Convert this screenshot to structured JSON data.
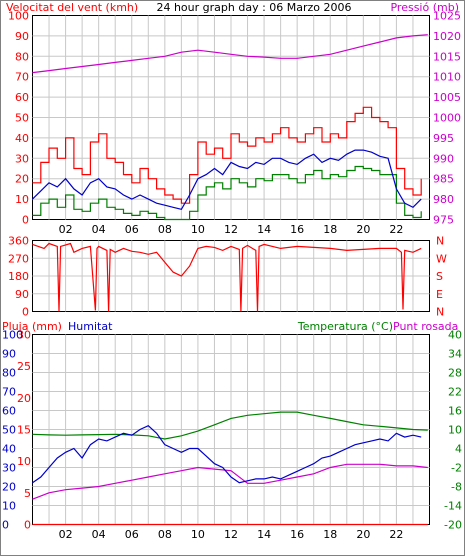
{
  "header": {
    "wind_label": "Velocitat del vent (kmh)",
    "title": "24 hour graph day : 06 Marzo 2006",
    "pressure_label": "Pressió (mb)"
  },
  "panel_bottom": {
    "rain_label": "Pluja (mm)",
    "humidity_label": "Humitat",
    "temp_label": "Temperatura (°C)",
    "dew_label": "Punt rosada"
  },
  "colors": {
    "wind_gust": "#ff0000",
    "wind_avg": "#0000cc",
    "wind_min": "#008000",
    "pressure": "#cc00cc",
    "direction": "#ff0000",
    "humidity": "#0000cc",
    "temperature": "#008000",
    "dew": "#cc00cc",
    "rain": "#ff0000",
    "grid": "#c8c8c8"
  },
  "chart_data": [
    {
      "type": "line",
      "title": "24 hour graph day : 06 Marzo 2006",
      "x_ticks": [
        "02",
        "04",
        "06",
        "08",
        "10",
        "12",
        "14",
        "16",
        "18",
        "20",
        "22"
      ],
      "xlim": [
        0,
        24
      ],
      "y_left_ticks": [
        "0",
        "10",
        "20",
        "30",
        "40",
        "50",
        "60",
        "70",
        "80",
        "90",
        "100"
      ],
      "y_left_label": "Velocitat del vent (kmh)",
      "y_left_range": [
        0,
        100
      ],
      "y_right_ticks": [
        "975",
        "980",
        "985",
        "990",
        "995",
        "1000",
        "1005",
        "1010",
        "1015",
        "1020",
        "1025"
      ],
      "y_right_label": "Pressió (mb)",
      "y_right_range": [
        975,
        1025
      ],
      "grid": true,
      "series": [
        {
          "key": "gust",
          "axis": "left",
          "x": [
            0,
            0.5,
            1,
            1.5,
            2,
            2.5,
            3,
            3.5,
            4,
            4.5,
            5,
            5.5,
            6,
            6.5,
            7,
            7.5,
            8,
            8.5,
            9,
            9.5,
            10,
            10.5,
            11,
            11.5,
            12,
            12.5,
            13,
            13.5,
            14,
            14.5,
            15,
            15.5,
            16,
            16.5,
            17,
            17.5,
            18,
            18.5,
            19,
            19.5,
            20,
            20.5,
            21,
            21.5,
            22,
            22.5,
            23,
            23.5
          ],
          "values": [
            18,
            28,
            35,
            30,
            40,
            25,
            22,
            38,
            42,
            30,
            28,
            22,
            18,
            25,
            20,
            15,
            12,
            10,
            8,
            22,
            38,
            32,
            35,
            30,
            42,
            38,
            36,
            40,
            38,
            42,
            45,
            40,
            38,
            42,
            45,
            38,
            42,
            40,
            48,
            52,
            55,
            50,
            48,
            45,
            25,
            15,
            12,
            20
          ]
        },
        {
          "key": "average",
          "axis": "left",
          "x": [
            0,
            0.5,
            1,
            1.5,
            2,
            2.5,
            3,
            3.5,
            4,
            4.5,
            5,
            5.5,
            6,
            6.5,
            7,
            7.5,
            8,
            8.5,
            9,
            9.5,
            10,
            10.5,
            11,
            11.5,
            12,
            12.5,
            13,
            13.5,
            14,
            14.5,
            15,
            15.5,
            16,
            16.5,
            17,
            17.5,
            18,
            18.5,
            19,
            19.5,
            20,
            20.5,
            21,
            21.5,
            22,
            22.5,
            23,
            23.5
          ],
          "values": [
            10,
            14,
            18,
            16,
            20,
            15,
            12,
            18,
            20,
            16,
            15,
            12,
            10,
            12,
            10,
            8,
            7,
            6,
            5,
            12,
            20,
            22,
            25,
            22,
            28,
            26,
            25,
            28,
            27,
            30,
            30,
            28,
            27,
            30,
            32,
            28,
            30,
            29,
            32,
            34,
            34,
            33,
            31,
            30,
            15,
            8,
            6,
            10
          ]
        },
        {
          "key": "minimum",
          "axis": "left",
          "x": [
            0,
            0.5,
            1,
            1.5,
            2,
            2.5,
            3,
            3.5,
            4,
            4.5,
            5,
            5.5,
            6,
            6.5,
            7,
            7.5,
            8,
            8.5,
            9,
            9.5,
            10,
            10.5,
            11,
            11.5,
            12,
            12.5,
            13,
            13.5,
            14,
            14.5,
            15,
            15.5,
            16,
            16.5,
            17,
            17.5,
            18,
            18.5,
            19,
            19.5,
            20,
            20.5,
            21,
            21.5,
            22,
            22.5,
            23,
            23.5
          ],
          "values": [
            2,
            8,
            10,
            6,
            12,
            5,
            4,
            8,
            10,
            6,
            5,
            3,
            2,
            4,
            3,
            1,
            0,
            0,
            0,
            4,
            12,
            16,
            18,
            15,
            20,
            18,
            16,
            20,
            19,
            22,
            22,
            20,
            18,
            22,
            24,
            20,
            22,
            21,
            24,
            26,
            25,
            24,
            22,
            22,
            8,
            2,
            1,
            4
          ]
        },
        {
          "key": "pressure",
          "axis": "right",
          "x": [
            0,
            1,
            2,
            3,
            4,
            5,
            6,
            7,
            8,
            9,
            10,
            11,
            12,
            13,
            14,
            15,
            16,
            17,
            18,
            19,
            20,
            21,
            22,
            23,
            23.9
          ],
          "values": [
            1011,
            1011.5,
            1012,
            1012.5,
            1013,
            1013.5,
            1014,
            1014.5,
            1015,
            1016,
            1016.5,
            1016,
            1015.5,
            1015,
            1014.8,
            1014.5,
            1014.5,
            1015,
            1015.5,
            1016.5,
            1017.5,
            1018.5,
            1019.5,
            1020,
            1020.3
          ]
        }
      ]
    },
    {
      "type": "line",
      "x_ticks": [
        "02",
        "04",
        "06",
        "08",
        "10",
        "12",
        "14",
        "16",
        "18",
        "20",
        "22"
      ],
      "xlim": [
        0,
        24
      ],
      "y_left_ticks": [
        "0",
        "90",
        "180",
        "270",
        "360"
      ],
      "y_left_range": [
        0,
        360
      ],
      "y_right_ticks": [
        "N",
        "W",
        "S",
        "E",
        "N"
      ],
      "grid": true,
      "series": [
        {
          "key": "direction",
          "x": [
            0,
            0.7,
            1,
            1.5,
            1.6,
            1.7,
            2.3,
            2.5,
            3,
            3.5,
            3.8,
            3.9,
            4,
            4.5,
            4.6,
            4.7,
            5,
            5.5,
            6,
            6.5,
            7,
            7.5,
            8,
            8.5,
            9,
            9.5,
            10,
            10.5,
            11,
            11.5,
            12,
            12.5,
            12.6,
            12.7,
            13,
            13.5,
            13.6,
            13.7,
            14,
            15,
            16,
            17,
            18,
            19,
            20,
            21,
            22,
            22.3,
            22.4,
            22.5,
            23,
            23.5
          ],
          "values": [
            340,
            320,
            345,
            330,
            0,
            330,
            345,
            300,
            320,
            330,
            5,
            320,
            330,
            310,
            0,
            315,
            300,
            320,
            305,
            300,
            290,
            300,
            250,
            200,
            180,
            230,
            320,
            330,
            325,
            310,
            330,
            315,
            0,
            320,
            335,
            310,
            0,
            330,
            340,
            320,
            330,
            325,
            320,
            310,
            315,
            320,
            320,
            300,
            10,
            310,
            300,
            320
          ]
        }
      ]
    },
    {
      "type": "line",
      "x_ticks": [
        "02",
        "04",
        "06",
        "08",
        "10",
        "12",
        "14",
        "16",
        "18",
        "20",
        "22"
      ],
      "xlim": [
        0,
        24
      ],
      "y_rain_ticks": [
        "0",
        "5",
        "10",
        "15",
        "20",
        "25",
        "30"
      ],
      "y_rain_range": [
        0,
        30
      ],
      "y_humidity_ticks": [
        "0",
        "10",
        "20",
        "30",
        "40",
        "50",
        "60",
        "70",
        "80",
        "90",
        "100"
      ],
      "y_humidity_range": [
        0,
        100
      ],
      "y_temp_ticks": [
        "-20",
        "-14",
        "-8",
        "-2",
        "4",
        "10",
        "16",
        "22",
        "28",
        "34",
        "40"
      ],
      "y_temp_range": [
        -20,
        40
      ],
      "grid": true,
      "series": [
        {
          "key": "rain",
          "axis": "rain",
          "x": [
            0,
            23.9
          ],
          "values": [
            0,
            0
          ]
        },
        {
          "key": "humidity",
          "axis": "humidity",
          "x": [
            0,
            0.5,
            1,
            1.5,
            2,
            2.5,
            3,
            3.5,
            4,
            4.5,
            5,
            5.5,
            6,
            6.5,
            7,
            7.5,
            8,
            8.5,
            9,
            9.5,
            10,
            10.5,
            11,
            11.5,
            12,
            12.5,
            13,
            13.5,
            14,
            14.5,
            15,
            15.5,
            16,
            16.5,
            17,
            17.5,
            18,
            18.5,
            19,
            19.5,
            20,
            20.5,
            21,
            21.5,
            22,
            22.5,
            23,
            23.5
          ],
          "values": [
            22,
            25,
            30,
            35,
            38,
            40,
            35,
            42,
            45,
            44,
            46,
            48,
            47,
            50,
            52,
            48,
            42,
            40,
            38,
            40,
            40,
            36,
            32,
            30,
            25,
            22,
            23,
            24,
            24,
            25,
            24,
            26,
            28,
            30,
            32,
            35,
            36,
            38,
            40,
            42,
            43,
            44,
            45,
            44,
            48,
            46,
            47,
            46
          ]
        },
        {
          "key": "temperature",
          "axis": "temp",
          "x": [
            0,
            1,
            2,
            3,
            4,
            5,
            6,
            7,
            8,
            9,
            10,
            11,
            12,
            13,
            14,
            15,
            16,
            17,
            18,
            19,
            20,
            21,
            22,
            23,
            23.9
          ],
          "values": [
            8.5,
            8.3,
            8.2,
            8.3,
            8.4,
            8.5,
            8.3,
            8.0,
            7.0,
            8.0,
            9.5,
            11.5,
            13.5,
            14.5,
            15.0,
            15.5,
            15.5,
            14.5,
            13.5,
            12.5,
            11.5,
            11.0,
            10.5,
            10.0,
            9.8
          ]
        },
        {
          "key": "dew",
          "axis": "temp",
          "x": [
            0,
            1,
            2,
            3,
            4,
            5,
            6,
            7,
            8,
            9,
            10,
            11,
            12,
            13,
            14,
            15,
            16,
            17,
            18,
            19,
            20,
            21,
            22,
            23,
            23.9
          ],
          "values": [
            -12,
            -10,
            -9,
            -8.5,
            -8,
            -7,
            -6,
            -5,
            -4,
            -3,
            -2,
            -2.5,
            -3,
            -7,
            -7,
            -6,
            -5,
            -4,
            -2,
            -1,
            -1,
            -1,
            -1.5,
            -1.5,
            -2
          ]
        }
      ]
    }
  ]
}
